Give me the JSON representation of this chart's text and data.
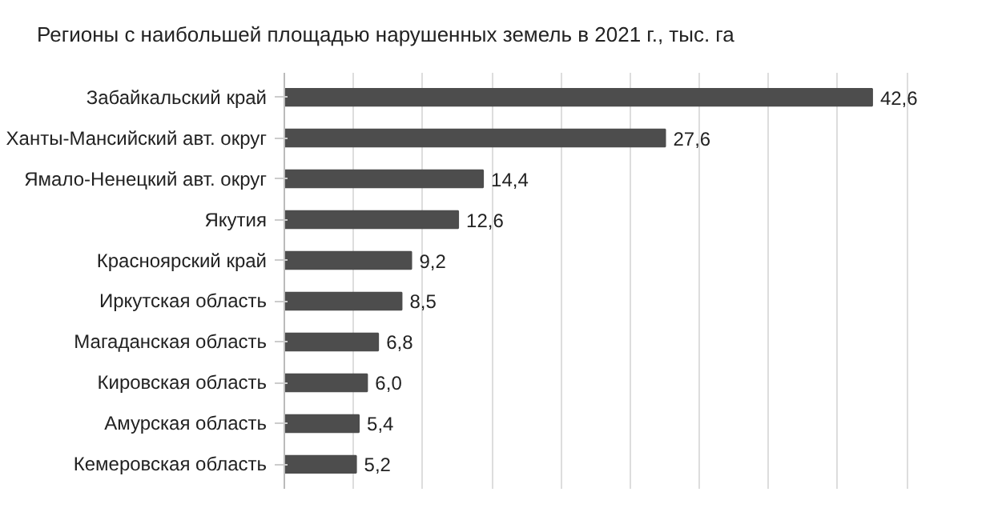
{
  "chart_data": {
    "type": "bar",
    "orientation": "horizontal",
    "title": "Регионы с наибольшей площадью нарушенных земель в 2021 г., тыс. га",
    "categories": [
      "Забайкальский край",
      "Ханты-Мансийский авт. округ",
      "Ямало-Ненецкий авт. округ",
      "Якутия",
      "Красноярский край",
      "Иркутская область",
      "Магаданская область",
      "Кировская область",
      "Амурская область",
      "Кемеровская область"
    ],
    "values": [
      42.6,
      27.6,
      14.4,
      12.6,
      9.2,
      8.5,
      6.8,
      6.0,
      5.4,
      5.2
    ],
    "value_labels": [
      "42,6",
      "27,6",
      "14,4",
      "12,6",
      "9,2",
      "8,5",
      "6,8",
      "6,0",
      "5,4",
      "5,2"
    ],
    "color": "#4d4d4d",
    "grid": "x",
    "tick_labels": "y"
  }
}
